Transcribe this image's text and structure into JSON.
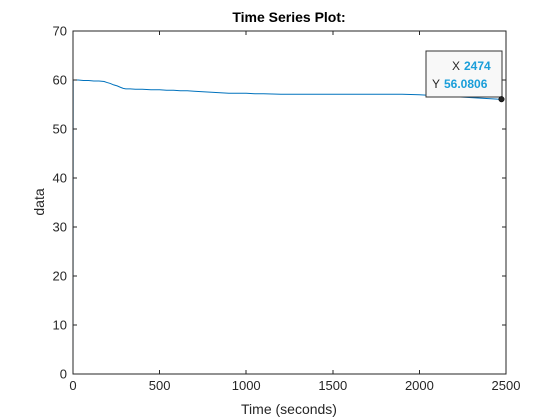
{
  "chart_data": {
    "type": "line",
    "title": "Time Series Plot:",
    "xlabel": "Time (seconds)",
    "ylabel": "data",
    "xlim": [
      0,
      2500
    ],
    "ylim": [
      0,
      70
    ],
    "xticks": [
      0,
      500,
      1000,
      1500,
      2000,
      2500
    ],
    "yticks": [
      0,
      10,
      20,
      30,
      40,
      50,
      60,
      70
    ],
    "grid": false,
    "series": [
      {
        "color": "#0072bd",
        "x": [
          0,
          1,
          30,
          60,
          90,
          120,
          150,
          180,
          195,
          215,
          235,
          255,
          275,
          290,
          305,
          330,
          360,
          400,
          450,
          500,
          540,
          580,
          620,
          660,
          700,
          750,
          800,
          850,
          900,
          950,
          1000,
          1050,
          1100,
          1200,
          1300,
          1400,
          1500,
          1600,
          1700,
          1800,
          1900,
          2000,
          2050,
          2100,
          2150,
          2200,
          2250,
          2300,
          2350,
          2400,
          2450,
          2474
        ],
        "y": [
          0,
          60.0,
          60.0,
          59.9,
          59.9,
          59.8,
          59.8,
          59.7,
          59.5,
          59.3,
          59.0,
          58.8,
          58.5,
          58.3,
          58.2,
          58.2,
          58.1,
          58.1,
          58.0,
          58.0,
          57.9,
          57.9,
          57.8,
          57.8,
          57.7,
          57.6,
          57.5,
          57.4,
          57.3,
          57.3,
          57.3,
          57.2,
          57.2,
          57.1,
          57.1,
          57.1,
          57.1,
          57.1,
          57.1,
          57.1,
          57.1,
          57.0,
          56.9,
          56.8,
          56.7,
          56.6,
          56.5,
          56.4,
          56.3,
          56.2,
          56.1,
          56.0806
        ]
      }
    ],
    "datatip": {
      "x_label": "X",
      "x_value": "2474",
      "y_label": "Y",
      "y_value": "56.0806",
      "x": 2474,
      "y": 56.0806
    }
  }
}
